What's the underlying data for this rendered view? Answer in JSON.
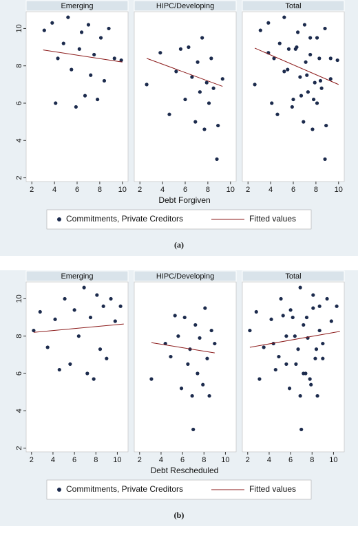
{
  "chart_data": [
    {
      "type": "scatter",
      "caption": "(a)",
      "x_label": "Debt Forgiven",
      "xlim": [
        1.5,
        10.5
      ],
      "xticks": [
        2,
        4,
        6,
        8,
        10
      ],
      "ylim": [
        1.8,
        10.9
      ],
      "yticks": [
        2,
        4,
        6,
        8,
        10
      ],
      "series": [
        {
          "name": "Commitments, Private Creditors",
          "color": "#1c2b4d"
        },
        {
          "name": "Fitted values",
          "color": "#8b1a1a"
        }
      ],
      "panels": [
        {
          "title": "Emerging",
          "x": [
            3.1,
            3.8,
            4.1,
            4.3,
            4.8,
            5.2,
            5.5,
            5.9,
            6.2,
            6.4,
            6.7,
            7.0,
            7.2,
            7.5,
            7.8,
            8.1,
            8.4,
            8.8,
            9.3,
            9.9
          ],
          "y": [
            9.9,
            10.3,
            6.0,
            8.4,
            9.2,
            10.6,
            7.8,
            5.8,
            8.9,
            9.8,
            6.4,
            10.2,
            7.5,
            8.6,
            6.2,
            9.5,
            7.2,
            10.0,
            8.4,
            8.3
          ],
          "fit_x": [
            3,
            10
          ],
          "fit_y": [
            8.85,
            8.2
          ]
        },
        {
          "title": "HIPC/Developing",
          "x": [
            2.6,
            3.8,
            4.6,
            5.2,
            5.6,
            6.0,
            6.3,
            6.6,
            6.9,
            7.1,
            7.3,
            7.5,
            7.7,
            7.9,
            8.1,
            8.3,
            8.5,
            8.8,
            8.9,
            9.3
          ],
          "y": [
            7.0,
            8.7,
            5.4,
            7.7,
            8.9,
            6.2,
            9.0,
            7.4,
            5.0,
            8.2,
            6.6,
            9.5,
            4.6,
            7.1,
            6.0,
            8.4,
            6.8,
            3.0,
            4.8,
            7.3
          ],
          "fit_x": [
            2.6,
            9.3
          ],
          "fit_y": [
            8.4,
            6.9
          ]
        },
        {
          "title": "Total",
          "x": [
            3.1,
            3.8,
            4.1,
            4.3,
            4.8,
            5.2,
            5.5,
            5.9,
            6.2,
            6.4,
            6.7,
            7.0,
            7.2,
            7.5,
            7.8,
            8.1,
            8.4,
            8.8,
            9.3,
            9.9,
            2.6,
            3.8,
            4.6,
            5.2,
            5.6,
            6.0,
            6.3,
            6.6,
            6.9,
            7.1,
            7.3,
            7.5,
            7.7,
            7.9,
            8.1,
            8.3,
            8.5,
            8.8,
            8.9,
            9.3
          ],
          "y": [
            9.9,
            10.3,
            6.0,
            8.4,
            9.2,
            10.6,
            7.8,
            5.8,
            8.9,
            9.8,
            6.4,
            10.2,
            7.5,
            8.6,
            6.2,
            9.5,
            7.2,
            10.0,
            8.4,
            8.3,
            7.0,
            8.7,
            5.4,
            7.7,
            8.9,
            6.2,
            9.0,
            7.4,
            5.0,
            8.2,
            6.6,
            9.5,
            4.6,
            7.1,
            6.0,
            8.4,
            6.8,
            3.0,
            4.8,
            7.3
          ],
          "fit_x": [
            2.6,
            10
          ],
          "fit_y": [
            8.95,
            7.0
          ]
        }
      ]
    },
    {
      "type": "scatter",
      "caption": "(b)",
      "x_label": "Debt Rescheduled",
      "xlim": [
        1.5,
        11
      ],
      "xticks": [
        2,
        4,
        6,
        8,
        10
      ],
      "ylim": [
        1.8,
        10.9
      ],
      "yticks": [
        2,
        4,
        6,
        8,
        10
      ],
      "series": [
        {
          "name": "Commitments, Private Creditors",
          "color": "#1c2b4d"
        },
        {
          "name": "Fitted values",
          "color": "#8b1a1a"
        }
      ],
      "panels": [
        {
          "title": "Emerging",
          "x": [
            2.2,
            2.8,
            3.5,
            4.2,
            4.6,
            5.1,
            5.6,
            6.0,
            6.4,
            6.9,
            7.2,
            7.5,
            7.8,
            8.1,
            8.4,
            8.7,
            9.0,
            9.4,
            9.8,
            10.3
          ],
          "y": [
            8.3,
            9.3,
            7.4,
            8.9,
            6.2,
            10.0,
            6.5,
            9.4,
            8.0,
            10.6,
            6.0,
            9.0,
            5.7,
            10.2,
            7.3,
            9.6,
            6.8,
            10.0,
            8.8,
            9.6
          ],
          "fit_x": [
            2.2,
            10.6
          ],
          "fit_y": [
            8.2,
            8.65
          ]
        },
        {
          "title": "HIPC/Developing",
          "x": [
            3.1,
            4.4,
            4.9,
            5.3,
            5.6,
            5.9,
            6.2,
            6.5,
            6.7,
            6.9,
            7.0,
            7.2,
            7.4,
            7.6,
            7.9,
            8.1,
            8.3,
            8.5,
            8.7,
            9.0
          ],
          "y": [
            5.7,
            7.6,
            6.9,
            9.1,
            8.0,
            5.2,
            9.0,
            6.5,
            7.3,
            4.8,
            3.0,
            8.6,
            6.0,
            7.9,
            5.4,
            9.5,
            6.8,
            4.8,
            8.3,
            7.6
          ],
          "fit_x": [
            3.1,
            9
          ],
          "fit_y": [
            7.65,
            7.1
          ]
        },
        {
          "title": "Total",
          "x": [
            2.2,
            2.8,
            3.5,
            4.2,
            4.6,
            5.1,
            5.6,
            6.0,
            6.4,
            6.9,
            7.2,
            7.5,
            7.8,
            8.1,
            8.4,
            8.7,
            9.0,
            9.4,
            9.8,
            10.3,
            3.1,
            4.4,
            4.9,
            5.3,
            5.6,
            5.9,
            6.2,
            6.5,
            6.7,
            6.9,
            7.0,
            7.2,
            7.4,
            7.6,
            7.9,
            8.1,
            8.3,
            8.5,
            8.7,
            9.0
          ],
          "y": [
            8.3,
            9.3,
            7.4,
            8.9,
            6.2,
            10.0,
            6.5,
            9.4,
            8.0,
            10.6,
            6.0,
            9.0,
            5.7,
            10.2,
            7.3,
            9.6,
            6.8,
            10.0,
            8.8,
            9.6,
            5.7,
            7.6,
            6.9,
            9.1,
            8.0,
            5.2,
            9.0,
            6.5,
            7.3,
            4.8,
            3.0,
            8.6,
            6.0,
            7.9,
            5.4,
            9.5,
            6.8,
            4.8,
            8.3,
            7.6
          ],
          "fit_x": [
            2.2,
            10.6
          ],
          "fit_y": [
            7.4,
            8.25
          ]
        }
      ]
    }
  ]
}
